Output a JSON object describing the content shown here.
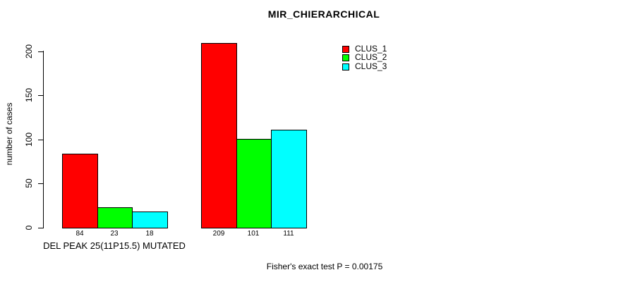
{
  "chart_data": {
    "type": "bar",
    "title": "MIR_CHIERARCHICAL",
    "xlabel": "",
    "ylabel": "number of cases",
    "ylim": [
      0,
      200
    ],
    "yticks": [
      0,
      50,
      100,
      150,
      200
    ],
    "grid": false,
    "legend_position": "top-right",
    "categories": [
      "DEL PEAK 25(11P15.5) MUTATED",
      ""
    ],
    "series": [
      {
        "name": "CLUS_1",
        "color": "#ff0000",
        "values": [
          84,
          209
        ]
      },
      {
        "name": "CLUS_2",
        "color": "#00ff00",
        "values": [
          23,
          101
        ]
      },
      {
        "name": "CLUS_3",
        "color": "#00ffff",
        "values": [
          18,
          111
        ]
      }
    ],
    "bar_value_labels": [
      [
        84,
        23,
        18
      ],
      [
        209,
        101,
        111
      ]
    ],
    "annotation": "Fisher's exact test P = 0.00175"
  }
}
